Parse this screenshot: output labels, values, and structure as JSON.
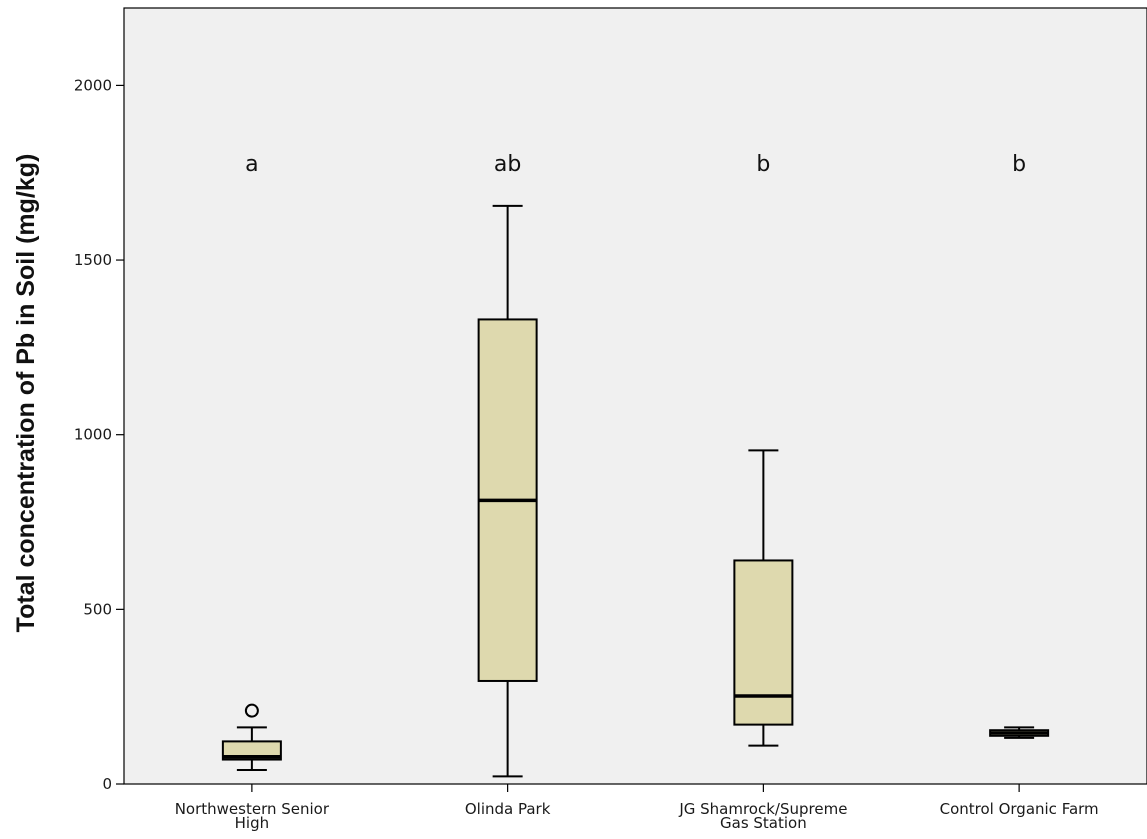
{
  "chart_data": {
    "type": "boxplot",
    "title": "",
    "xlabel": "",
    "ylabel": "Total concentration of Pb in Soil (mg/kg)",
    "ylim": [
      0,
      2200
    ],
    "yticks": [
      0,
      500,
      1000,
      1500,
      2000
    ],
    "grid": false,
    "categories": [
      {
        "lines": [
          "Northwestern Senior",
          "High"
        ]
      },
      {
        "lines": [
          "Olinda Park"
        ]
      },
      {
        "lines": [
          "JG Shamrock/Supreme",
          "Gas Station"
        ]
      },
      {
        "lines": [
          "Control Organic Farm"
        ]
      }
    ],
    "boxes": [
      {
        "whisker_low": 40,
        "q1": 70,
        "median": 78,
        "q3": 122,
        "whisker_high": 162,
        "outliers": [
          210
        ],
        "significance": "a"
      },
      {
        "whisker_low": 22,
        "q1": 295,
        "median": 812,
        "q3": 1330,
        "whisker_high": 1655,
        "outliers": [],
        "significance": "ab"
      },
      {
        "whisker_low": 110,
        "q1": 170,
        "median": 252,
        "q3": 640,
        "whisker_high": 955,
        "outliers": [],
        "significance": "b"
      },
      {
        "whisker_low": 132,
        "q1": 138,
        "median": 146,
        "q3": 154,
        "whisker_high": 162,
        "outliers": [],
        "significance": "b"
      }
    ],
    "colors": {
      "plot_background": "#f0f0f0",
      "box_fill": "#ded9ae",
      "line": "#000000"
    }
  }
}
